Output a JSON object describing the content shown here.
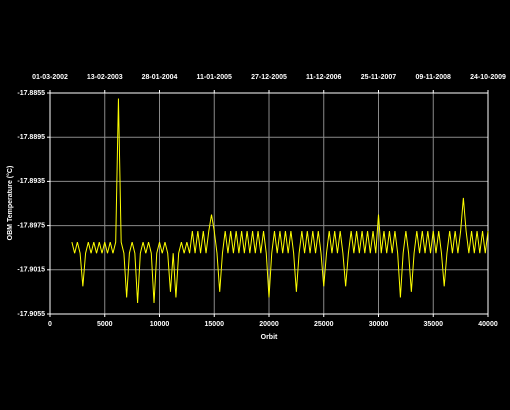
{
  "chart_data": {
    "type": "line",
    "x_label": "Orbit",
    "y_label": "OBM Temperature (°C)",
    "xlim": [
      0,
      40000
    ],
    "xticks": [
      0,
      5000,
      10000,
      15000,
      20000,
      25000,
      30000,
      35000,
      40000
    ],
    "x2ticks": [
      {
        "value": 0,
        "label": "01-03-2002"
      },
      {
        "value": 5000,
        "label": "13-02-2003"
      },
      {
        "value": 10000,
        "label": "28-01-2004"
      },
      {
        "value": 15000,
        "label": "11-01-2005"
      },
      {
        "value": 20000,
        "label": "27-12-2005"
      },
      {
        "value": 25000,
        "label": "11-12-2006"
      },
      {
        "value": 30000,
        "label": "25-11-2007"
      },
      {
        "value": 35000,
        "label": "09-11-2008"
      },
      {
        "value": 40000,
        "label": "24-10-2009"
      }
    ],
    "ylim": [
      -17.9055,
      -17.8855
    ],
    "yticks": [
      -17.9055,
      -17.9015,
      -17.8975,
      -17.8935,
      -17.8895,
      -17.8855
    ],
    "grid": true,
    "x": [
      2000,
      2250,
      2500,
      2750,
      3000,
      3250,
      3500,
      3750,
      4000,
      4250,
      4500,
      4750,
      5000,
      5250,
      5500,
      5750,
      6000,
      6250,
      6500,
      6750,
      7000,
      7250,
      7500,
      7750,
      8000,
      8250,
      8500,
      8750,
      9000,
      9250,
      9500,
      9750,
      10000,
      10250,
      10500,
      10750,
      11000,
      11250,
      11500,
      11750,
      12000,
      12250,
      12500,
      12750,
      13000,
      13250,
      13500,
      13750,
      14000,
      14250,
      14500,
      14750,
      15000,
      15250,
      15500,
      15750,
      16000,
      16250,
      16500,
      16750,
      17000,
      17250,
      17500,
      17750,
      18000,
      18250,
      18500,
      18750,
      19000,
      19250,
      19500,
      19750,
      20000,
      20250,
      20500,
      20750,
      21000,
      21250,
      21500,
      21750,
      22000,
      22250,
      22500,
      22750,
      23000,
      23250,
      23500,
      23750,
      24000,
      24250,
      24500,
      24750,
      25000,
      25250,
      25500,
      25750,
      26000,
      26250,
      26500,
      26750,
      27000,
      27250,
      27500,
      27750,
      28000,
      28250,
      28500,
      28750,
      29000,
      29250,
      29500,
      29750,
      30000,
      30250,
      30500,
      30750,
      31000,
      31250,
      31500,
      31750,
      32000,
      32250,
      32500,
      32750,
      33000,
      33250,
      33500,
      33750,
      34000,
      34250,
      34500,
      34750,
      35000,
      35250,
      35500,
      35750,
      36000,
      36250,
      36500,
      36750,
      37000,
      37250,
      37500,
      37750,
      38000,
      38250,
      38500,
      38750,
      39000,
      39250,
      39500,
      39750,
      40000
    ],
    "series": [
      {
        "color": "#ffff00",
        "values": [
          -17.899,
          -17.9,
          -17.899,
          -17.9,
          -17.903,
          -17.9,
          -17.899,
          -17.9,
          -17.899,
          -17.9,
          -17.899,
          -17.9,
          -17.899,
          -17.9,
          -17.899,
          -17.9,
          -17.899,
          -17.886,
          -17.899,
          -17.9,
          -17.904,
          -17.9,
          -17.899,
          -17.9,
          -17.9045,
          -17.9,
          -17.899,
          -17.9,
          -17.899,
          -17.9,
          -17.9045,
          -17.9,
          -17.899,
          -17.9,
          -17.899,
          -17.9,
          -17.9035,
          -17.9,
          -17.904,
          -17.9,
          -17.899,
          -17.9,
          -17.899,
          -17.9,
          -17.898,
          -17.9,
          -17.898,
          -17.9,
          -17.898,
          -17.9,
          -17.898,
          -17.8965,
          -17.898,
          -17.9,
          -17.9035,
          -17.9,
          -17.898,
          -17.9,
          -17.898,
          -17.9,
          -17.898,
          -17.9,
          -17.898,
          -17.9,
          -17.898,
          -17.9,
          -17.898,
          -17.9,
          -17.898,
          -17.9,
          -17.898,
          -17.9,
          -17.904,
          -17.9,
          -17.898,
          -17.9,
          -17.898,
          -17.9,
          -17.898,
          -17.9,
          -17.898,
          -17.9,
          -17.9035,
          -17.9,
          -17.898,
          -17.9,
          -17.898,
          -17.9,
          -17.898,
          -17.9,
          -17.898,
          -17.9,
          -17.903,
          -17.9,
          -17.898,
          -17.9,
          -17.898,
          -17.9,
          -17.898,
          -17.9,
          -17.903,
          -17.9,
          -17.898,
          -17.9,
          -17.898,
          -17.9,
          -17.898,
          -17.9,
          -17.898,
          -17.9,
          -17.898,
          -17.9,
          -17.8965,
          -17.9,
          -17.898,
          -17.9,
          -17.898,
          -17.9,
          -17.898,
          -17.9,
          -17.904,
          -17.9,
          -17.898,
          -17.9,
          -17.9035,
          -17.9,
          -17.898,
          -17.9,
          -17.898,
          -17.9,
          -17.898,
          -17.9,
          -17.898,
          -17.9,
          -17.898,
          -17.9,
          -17.903,
          -17.9,
          -17.898,
          -17.9,
          -17.898,
          -17.9,
          -17.898,
          -17.895,
          -17.898,
          -17.9,
          -17.898,
          -17.9,
          -17.898,
          -17.9,
          -17.898,
          -17.9,
          -17.898
        ]
      }
    ]
  }
}
